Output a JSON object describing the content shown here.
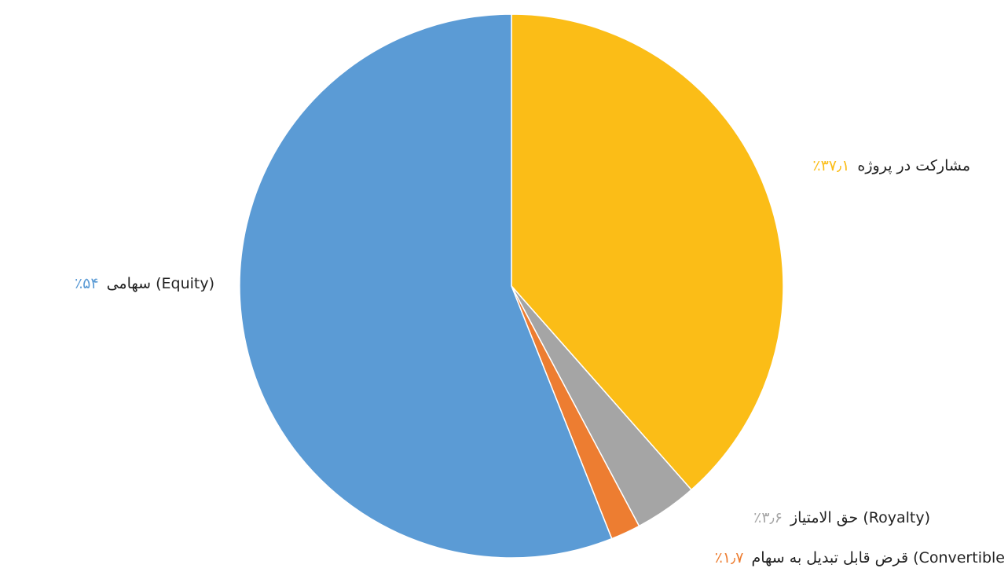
{
  "chart_data": {
    "type": "pie",
    "title": "",
    "slices": [
      {
        "name": "مشارکت در پروژه",
        "value": 37.1,
        "percent_label": "٪۳۷٫۱",
        "color": "#fbbd17"
      },
      {
        "name": "حق الامتیاز (Royalty)",
        "value": 3.6,
        "percent_label": "٪۳٫۶",
        "color": "#a5a5a5"
      },
      {
        "name": "قرض قابل تبدیل به سهام (Convertible",
        "value": 1.7,
        "percent_label": "٪۱٫۷",
        "color": "#ed7d31"
      },
      {
        "name": "سهامی (Equity)",
        "value": 54,
        "percent_label": "٪۵۴",
        "color": "#5b9bd5"
      }
    ],
    "start_angle": "top (12 o'clock)",
    "direction": "clockwise",
    "legend": "none (data labels beside slices)"
  }
}
